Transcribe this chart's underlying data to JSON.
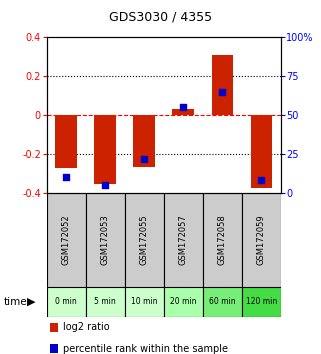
{
  "title": "GDS3030 / 4355",
  "samples": [
    "GSM172052",
    "GSM172053",
    "GSM172055",
    "GSM172057",
    "GSM172058",
    "GSM172059"
  ],
  "time_labels": [
    "0 min",
    "5 min",
    "10 min",
    "20 min",
    "60 min",
    "120 min"
  ],
  "log2_ratio": [
    -0.27,
    -0.355,
    -0.265,
    0.03,
    0.31,
    -0.375
  ],
  "percentile_rank": [
    10,
    5,
    22,
    55,
    65,
    8
  ],
  "bar_color": "#cc2200",
  "dot_color": "#0000cc",
  "ylim_left": [
    -0.4,
    0.4
  ],
  "ylim_right": [
    0,
    100
  ],
  "yticks_left": [
    -0.4,
    -0.2,
    0.0,
    0.2,
    0.4
  ],
  "yticks_right": [
    0,
    25,
    50,
    75,
    100
  ],
  "ytick_labels_left": [
    "-0.4",
    "-0.2",
    "0",
    "0.2",
    "0.4"
  ],
  "ytick_labels_right": [
    "0",
    "25",
    "50",
    "75",
    "100%"
  ],
  "hlines": [
    -0.2,
    0.0,
    0.2
  ],
  "hline_styles": [
    "dotted",
    "dashed",
    "dotted"
  ],
  "hline_colors": [
    "black",
    "red",
    "black"
  ],
  "bar_width": 0.55,
  "dot_size": 22,
  "sample_box_color": "#cccccc",
  "time_box_colors": [
    "#ccffcc",
    "#ccffcc",
    "#ccffcc",
    "#aaffaa",
    "#77ee77",
    "#44dd44"
  ],
  "legend_log2_label": "log2 ratio",
  "legend_pct_label": "percentile rank within the sample"
}
